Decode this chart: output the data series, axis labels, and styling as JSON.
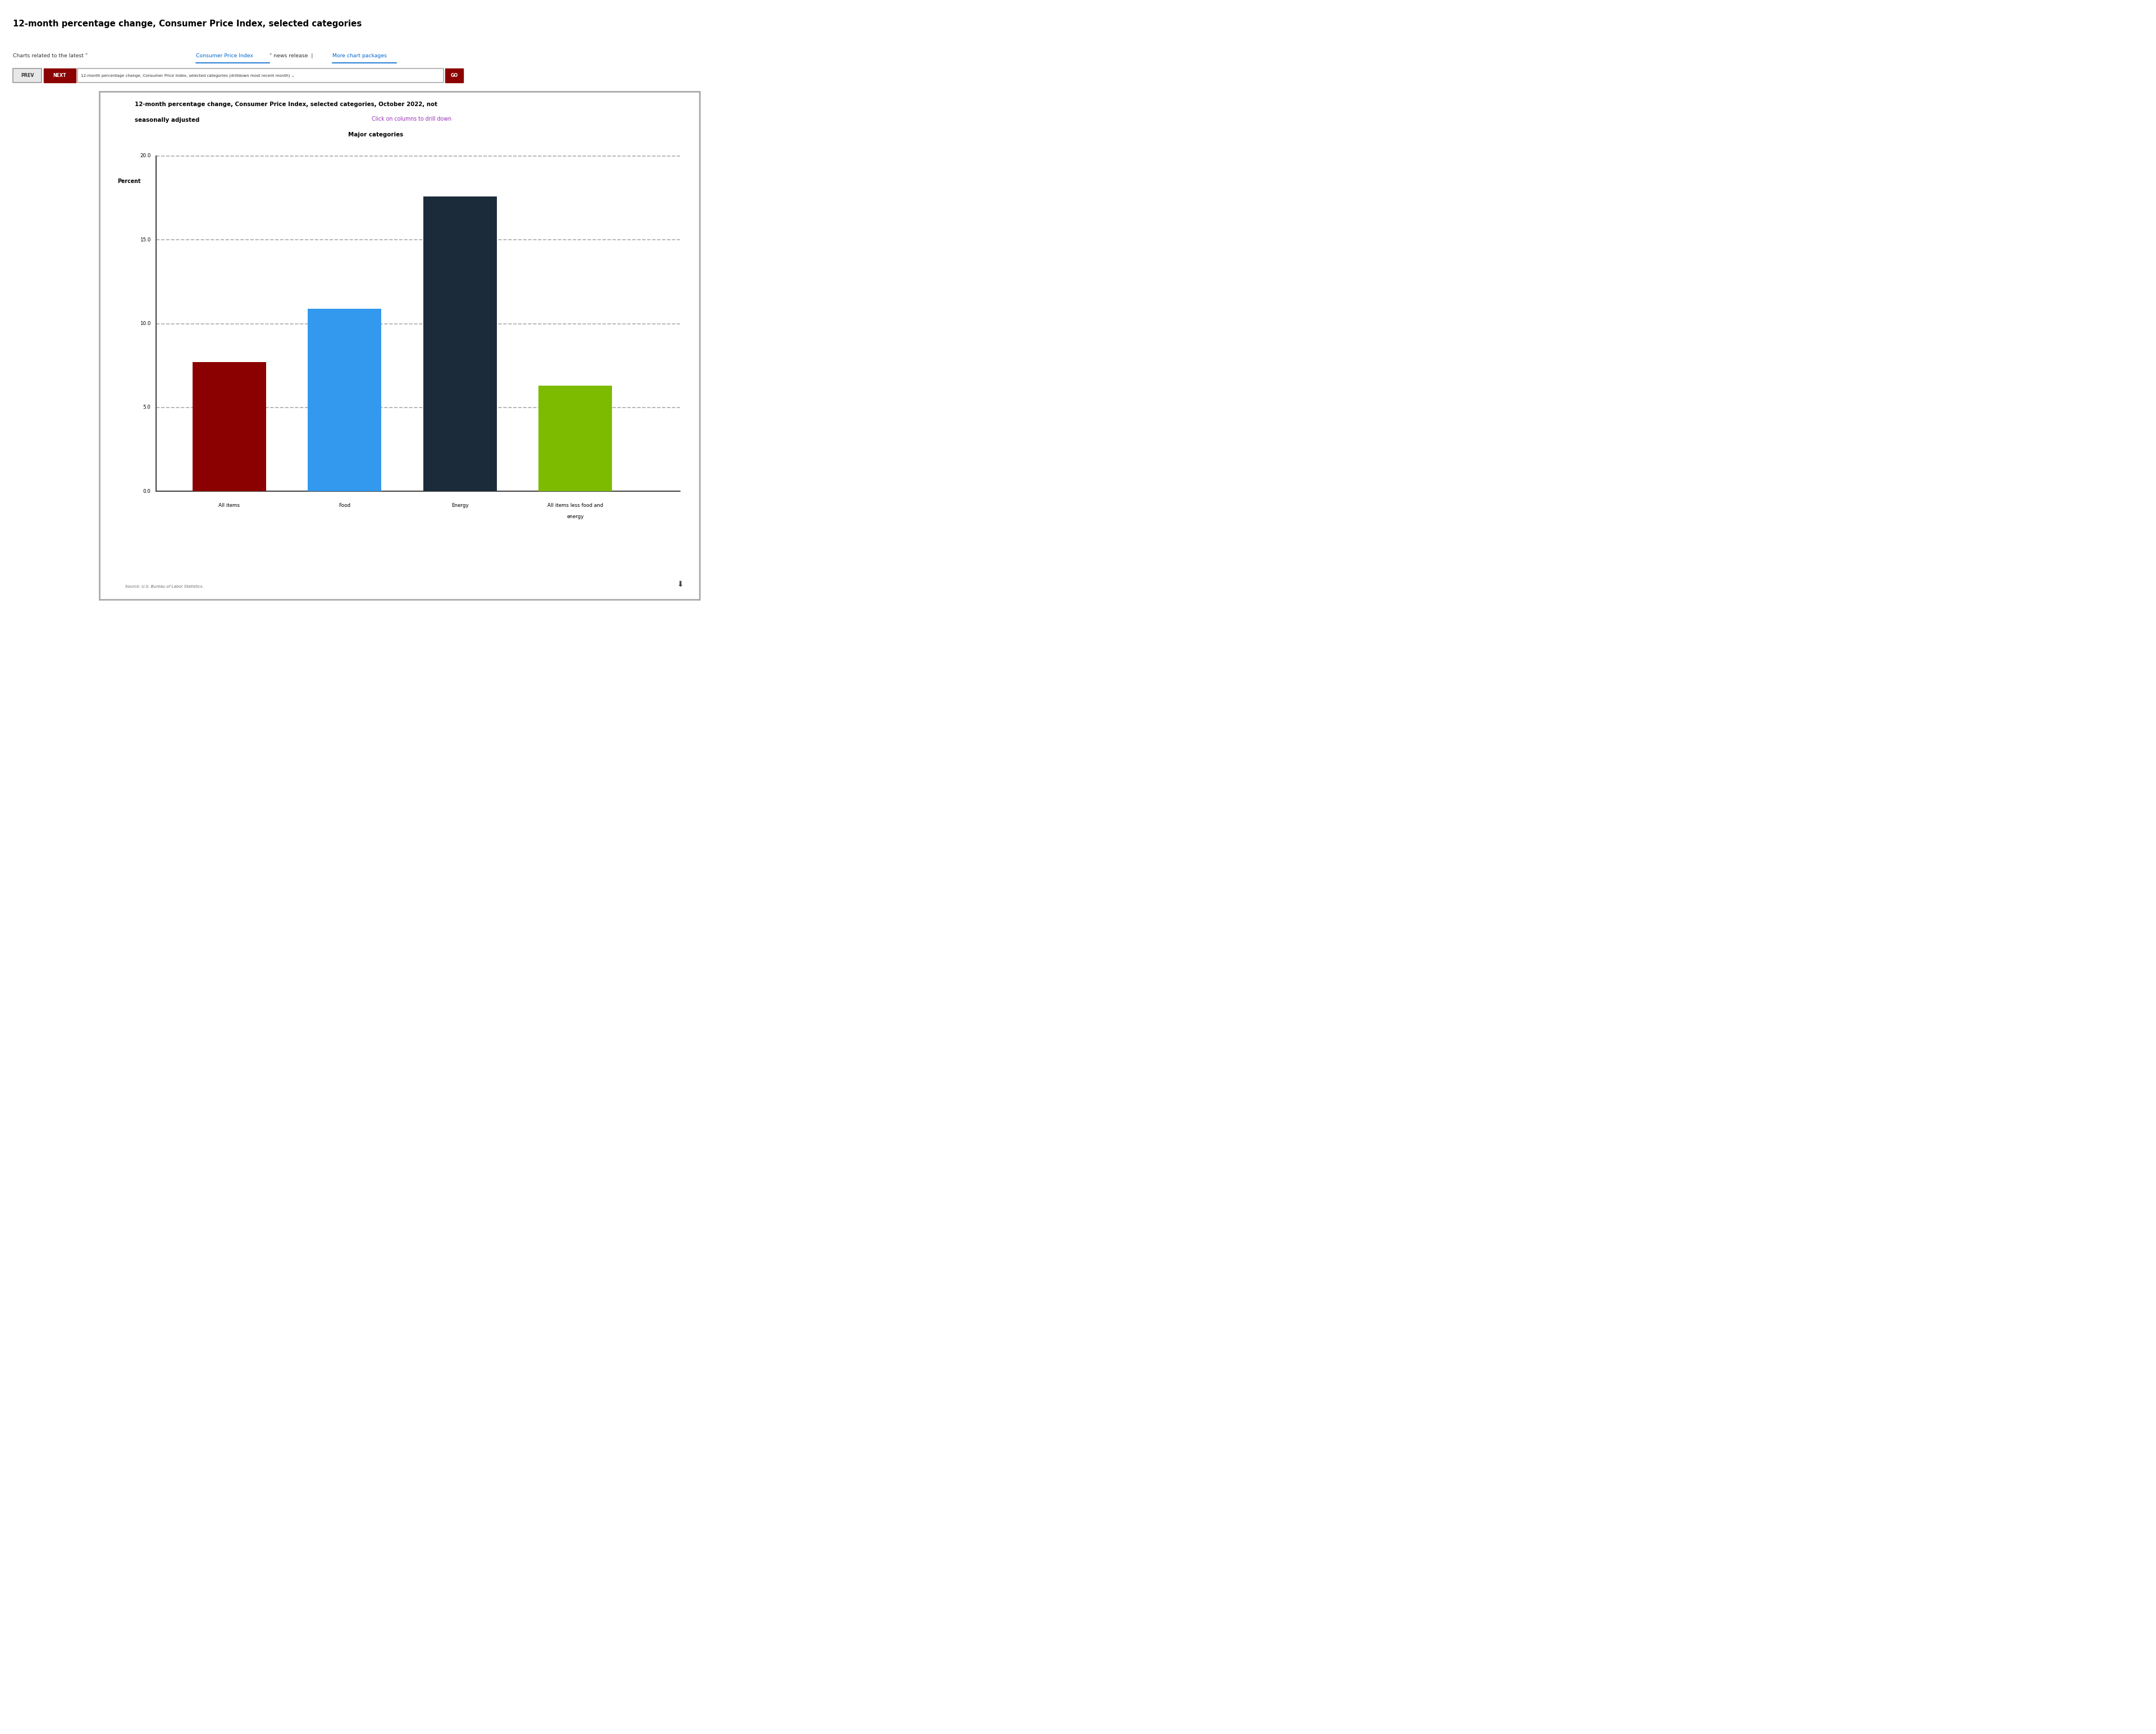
{
  "page_title": "12-month percentage change, Consumer Price Index, selected categories",
  "chart_title_line1": "12-month percentage change, Consumer Price Index, selected categories, October 2022, not",
  "chart_title_line2": "seasonally adjusted",
  "click_text": "Click on columns to drill down",
  "major_categories_label": "Major categories",
  "ylabel": "Percent",
  "categories": [
    "All items",
    "Food",
    "Energy",
    "All items less food and\nenergy"
  ],
  "values": [
    7.7,
    10.9,
    17.6,
    6.3
  ],
  "bar_colors": [
    "#8B0000",
    "#3399EE",
    "#1C2B3A",
    "#7CBB00"
  ],
  "ylim": [
    0,
    20.0
  ],
  "yticks": [
    0.0,
    5.0,
    10.0,
    15.0,
    20.0
  ],
  "source_text": "Source: U.S. Bureau of Labor Statistics.",
  "prev_text": "PREV",
  "next_text": "NEXT",
  "dropdown_text": "12-month percentage change, Consumer Price Index, selected categories (drilldown most recent month) ⌄",
  "go_text": "GO",
  "background_color": "#FFFFFF",
  "chart_box_color": "#FFFFFF",
  "chart_box_border": "#AAAAAA",
  "grid_color": "#AAAAAA",
  "scale": 3.4286
}
